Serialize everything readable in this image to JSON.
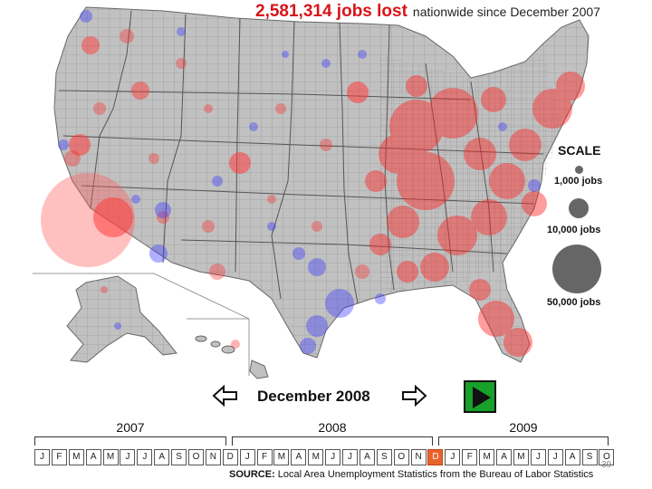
{
  "headline": {
    "jobs_lost": "2,581,314 jobs lost",
    "subtitle": "nationwide since December 2007"
  },
  "legend": {
    "title": "SCALE",
    "items": [
      {
        "label": "1,000 jobs",
        "jobs": 1000
      },
      {
        "label": "10,000 jobs",
        "jobs": 10000
      },
      {
        "label": "50,000 jobs",
        "jobs": 50000
      }
    ],
    "colors": {
      "loss": "#ff2a2a",
      "gain": "#3b3bff",
      "scale_dot": "#666666",
      "county_fill": "#bdbdbd",
      "county_border": "#8a8a8a"
    }
  },
  "player": {
    "current_month": "December 2008",
    "prev_icon": "left-arrow-icon",
    "next_icon": "right-arrow-icon",
    "play_icon": "play-icon",
    "play_color": "#17a02a"
  },
  "timeline": {
    "years": [
      "2007",
      "2008",
      "2009"
    ],
    "months": [
      "J",
      "F",
      "M",
      "A",
      "M",
      "J",
      "J",
      "A",
      "S",
      "O",
      "N",
      "D",
      "J",
      "F",
      "M",
      "A",
      "M",
      "J",
      "J",
      "A",
      "S",
      "O",
      "N",
      "D",
      "J",
      "F",
      "M",
      "A",
      "M",
      "J",
      "J",
      "A",
      "S",
      "O"
    ],
    "active_month": "D",
    "active_color": "#e8632c"
  },
  "source": {
    "label": "SOURCE:",
    "text": "Local Area Unemployment Statistics from the Bureau of Labor Statistics"
  },
  "page_number": "39"
}
